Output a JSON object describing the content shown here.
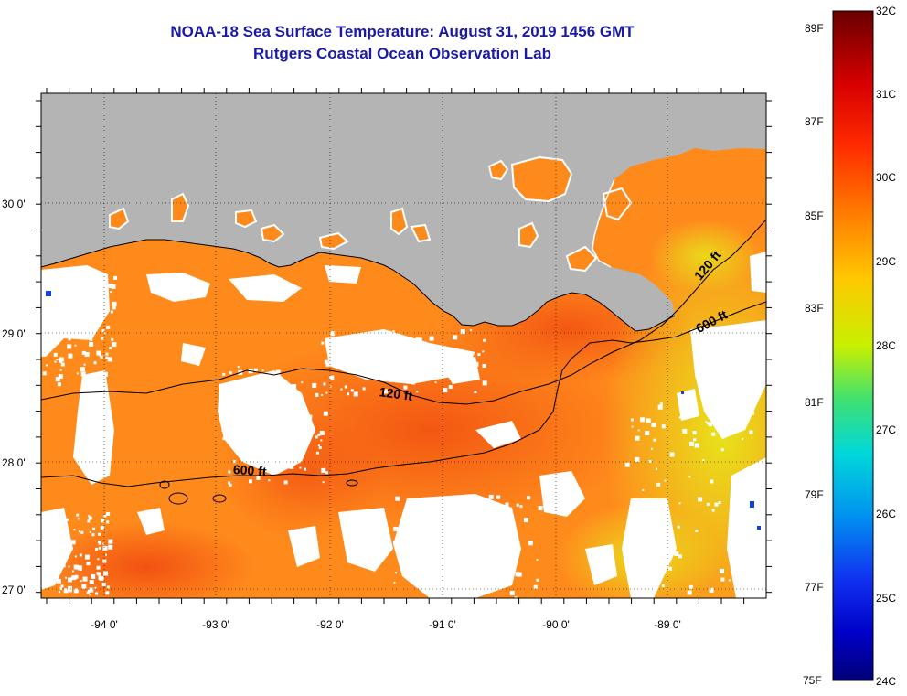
{
  "titles": {
    "line1": "NOAA-18 Sea Surface Temperature:  August 31, 2019 1456 GMT",
    "line2": "Rutgers Coastal Ocean Observation Lab"
  },
  "lat_labels": [
    "30 0'",
    "29 0'",
    "28 0'",
    "27 0'"
  ],
  "lon_labels": [
    "-94 0'",
    "-93 0'",
    "-92 0'",
    "-91 0'",
    "-90 0'",
    "-89 0'"
  ],
  "scale_f": [
    "89F",
    "87F",
    "85F",
    "83F",
    "81F",
    "79F",
    "77F",
    "75F"
  ],
  "scale_c": [
    "32C",
    "31C",
    "30C",
    "29C",
    "28C",
    "27C",
    "26C",
    "25C",
    "24C"
  ],
  "contours": {
    "ft120_a": "120 ft",
    "ft120_b": "120 ft",
    "ft600_a": "600 ft",
    "ft600_b": "600 ft"
  },
  "colors": {
    "land": "#b4b4b4",
    "cloud": "#ffffff",
    "sea_warm": "#f26a10",
    "sea_mid": "#ff8c1a",
    "sea_cool": "#e8ea1a",
    "title": "#1a1aa6"
  }
}
